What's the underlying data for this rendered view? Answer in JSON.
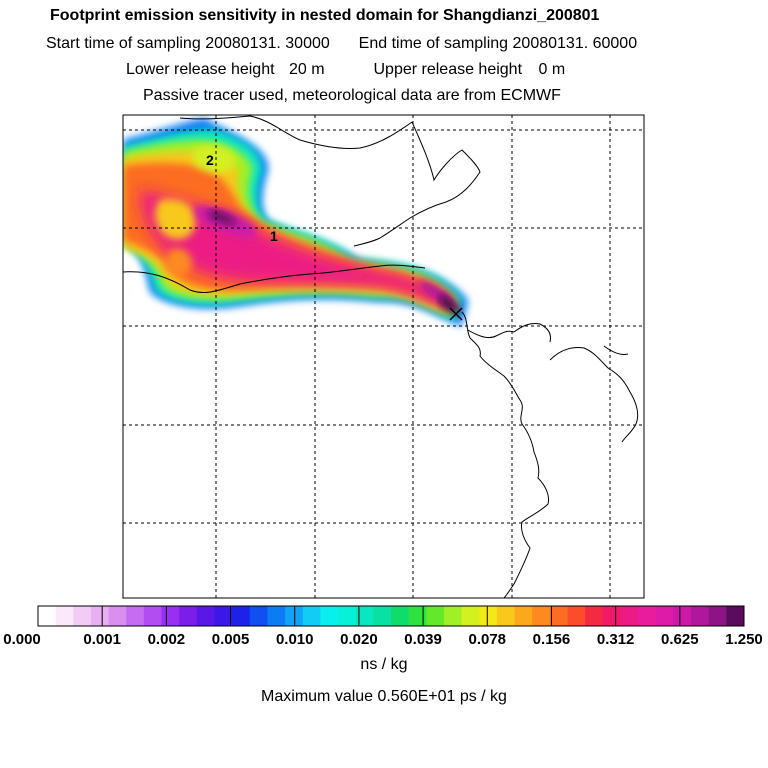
{
  "title": "Footprint emission sensitivity in nested domain for Shangdianzi_200801",
  "sampling_start_label": "Start time of sampling",
  "sampling_start": "20080131. 30000",
  "sampling_end_label": "End time of sampling",
  "sampling_end": "20080131. 60000",
  "lower_release_label": "Lower release height",
  "lower_release_value": "20 m",
  "upper_release_label": "Upper release height",
  "upper_release_value": "0 m",
  "info_line": "Passive tracer used, meteorological data are from ECMWF",
  "markers": [
    "2",
    "1"
  ],
  "colorbar": {
    "ticks": [
      "0.000",
      "0.001",
      "0.002",
      "0.005",
      "0.010",
      "0.020",
      "0.039",
      "0.078",
      "0.156",
      "0.312",
      "0.625",
      "1.250"
    ],
    "colors": [
      "#ffffff",
      "#fbe8fb",
      "#f3ccf5",
      "#e9b0f1",
      "#d98ef0",
      "#c56cf0",
      "#b14df1",
      "#9a2ef2",
      "#7a1ee8",
      "#5a18e6",
      "#3a18e8",
      "#1e20ec",
      "#1050f0",
      "#0c7cf4",
      "#10a4f6",
      "#12ccf6",
      "#08f0ee",
      "#08f0d8",
      "#08e8c0",
      "#08e0a4",
      "#10dc6c",
      "#2ee040",
      "#64e82c",
      "#a0f028",
      "#d4f020",
      "#f4e818",
      "#f8c81a",
      "#fca81c",
      "#fc8a20",
      "#fc6c24",
      "#fc4c2c",
      "#f42a44",
      "#f01a66",
      "#ec1a84",
      "#e81c9c",
      "#dc1ca8",
      "#cc1aa8",
      "#b0189c",
      "#8c1484",
      "#5a0c5c"
    ],
    "units": "ns / kg"
  },
  "maximum_value_text": "Maximum value  0.560E+01 ps / kg"
}
